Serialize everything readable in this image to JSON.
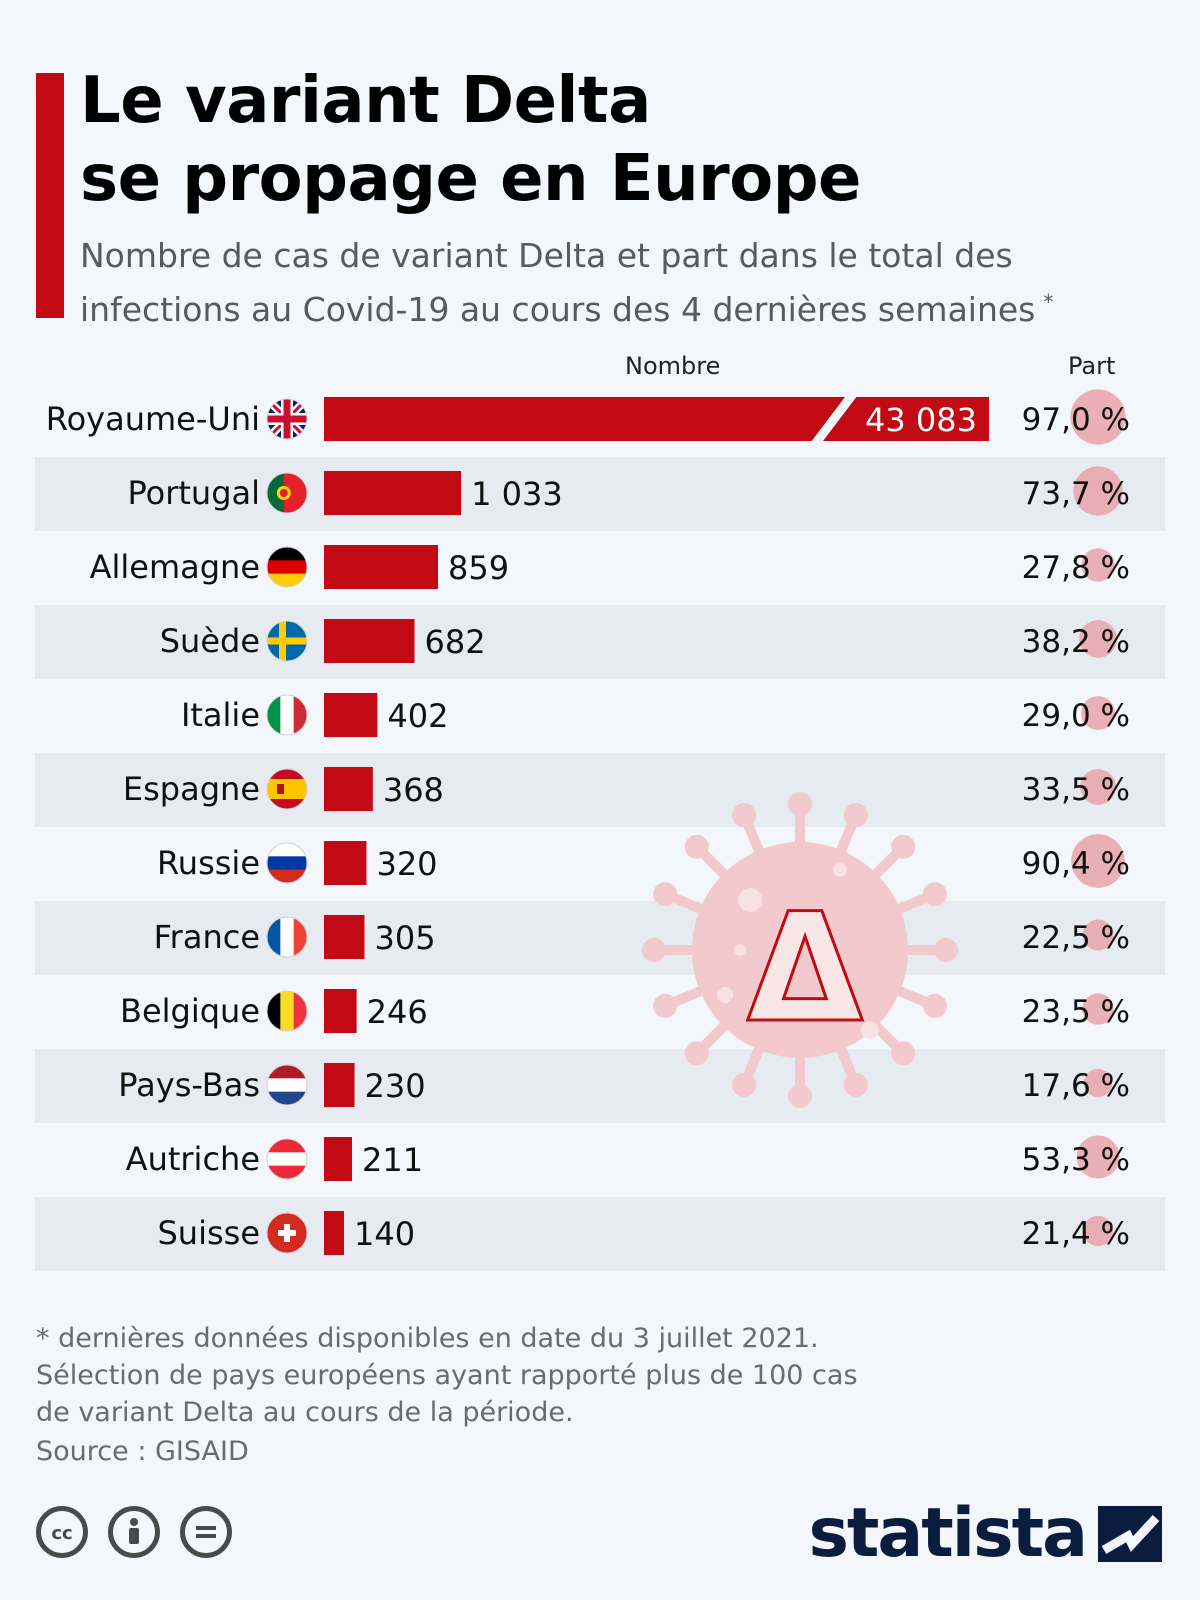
{
  "title": {
    "line1": "Le variant Delta",
    "line2": "se propage en Europe"
  },
  "subtitle": {
    "line1": "Nombre de cas de variant Delta et part dans le total des",
    "line2": "infections au Covid-19 au cours des 4 dernières semaines",
    "asterisk": "*"
  },
  "colors": {
    "accent": "#c10a14",
    "bubble": "#e8a3a8",
    "stripe": "#e6ebf1"
  },
  "chart_data": {
    "type": "bar",
    "orientation": "horizontal",
    "axis_break_first_bar": true,
    "series_labels": {
      "count": "Nombre",
      "share": "Part"
    },
    "categories": [
      "Royaume-Uni",
      "Portugal",
      "Allemagne",
      "Suède",
      "Italie",
      "Espagne",
      "Russie",
      "France",
      "Belgique",
      "Pays-Bas",
      "Autriche",
      "Suisse"
    ],
    "values": [
      43083,
      1033,
      859,
      682,
      402,
      368,
      320,
      305,
      246,
      230,
      211,
      140
    ],
    "value_labels": [
      "43 083",
      "1 033",
      "859",
      "682",
      "402",
      "368",
      "320",
      "305",
      "246",
      "230",
      "211",
      "140"
    ],
    "share": [
      97.0,
      73.7,
      27.8,
      38.2,
      29.0,
      33.5,
      90.4,
      22.5,
      23.5,
      17.6,
      53.3,
      21.4
    ],
    "share_labels": [
      "97,0 %",
      "73,7 %",
      "27,8 %",
      "38,2 %",
      "29,0 %",
      "33,5 %",
      "90,4 %",
      "22,5 %",
      "23,5 %",
      "17,6 %",
      "53,3 %",
      "21,4 %"
    ],
    "flags": [
      "uk-flag-icon",
      "portugal-flag-icon",
      "germany-flag-icon",
      "sweden-flag-icon",
      "italy-flag-icon",
      "spain-flag-icon",
      "russia-flag-icon",
      "france-flag-icon",
      "belgium-flag-icon",
      "netherlands-flag-icon",
      "austria-flag-icon",
      "switzerland-flag-icon"
    ],
    "bar_scale_max": 1200
  },
  "illustration": {
    "symbol": "Δ",
    "icon": "virus-icon"
  },
  "footnote": {
    "line1": "* dernières données disponibles en date du 3 juillet 2021.",
    "line2": "Sélection de pays européens ayant rapporté plus de 100 cas",
    "line3": "de variant Delta au cours de la période."
  },
  "source": "Source : GISAID",
  "license_icons": [
    "cc-icon",
    "by-icon",
    "nd-icon"
  ],
  "brand": "statista"
}
